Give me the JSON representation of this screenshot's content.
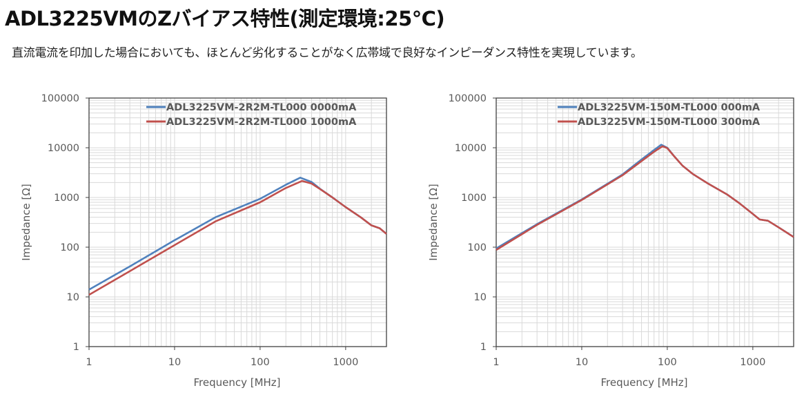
{
  "title": "ADL3225VMのZバイアス特性(測定環境:25℃)",
  "subtitle": "直流電流を印加した場合においても、ほとんど劣化することがなく広帯域で良好なインピーダンス特性を実現しています。",
  "colors": {
    "blue": "#4F81BD",
    "red": "#C0504D",
    "grid": "#D9D9D9",
    "text": "#595959"
  },
  "chart_data": [
    {
      "type": "line",
      "xlabel": "Frequency [MHz]",
      "ylabel": "Impedance [Ω]",
      "xscale": "log",
      "yscale": "log",
      "xlim": [
        1,
        3000
      ],
      "ylim": [
        1,
        100000
      ],
      "xticks": [
        "1",
        "10",
        "100",
        "1000"
      ],
      "yticks": [
        "1",
        "10",
        "100",
        "1000",
        "10000",
        "100000"
      ],
      "grid": true,
      "legend_position": "top-right",
      "series": [
        {
          "name": "ADL3225VM-2R2M-TL000 0000mA",
          "color": "#4F81BD",
          "x": [
            1,
            3,
            10,
            30,
            100,
            200,
            295,
            400,
            500,
            700,
            1000,
            1500,
            2000,
            2500,
            3000
          ],
          "y": [
            14,
            41,
            138,
            400,
            940,
            1800,
            2500,
            2050,
            1500,
            1000,
            640,
            400,
            275,
            240,
            185
          ]
        },
        {
          "name": "ADL3225VM-2R2M-TL000 1000mA",
          "color": "#C0504D",
          "x": [
            1,
            3,
            10,
            30,
            100,
            200,
            310,
            400,
            500,
            700,
            1000,
            1500,
            2000,
            2500,
            3000
          ],
          "y": [
            11,
            33,
            110,
            330,
            800,
            1550,
            2150,
            1900,
            1480,
            1000,
            640,
            400,
            275,
            240,
            185
          ]
        }
      ]
    },
    {
      "type": "line",
      "xlabel": "Frequency [MHz]",
      "ylabel": "Impedance [Ω]",
      "xscale": "log",
      "yscale": "log",
      "xlim": [
        1,
        3000
      ],
      "ylim": [
        1,
        100000
      ],
      "xticks": [
        "1",
        "10",
        "100",
        "1000"
      ],
      "yticks": [
        "1",
        "10",
        "100",
        "1000",
        "10000",
        "100000"
      ],
      "grid": true,
      "legend_position": "top-right",
      "series": [
        {
          "name": "ADL3225VM-150M-TL000 000mA",
          "color": "#4F81BD",
          "x": [
            1,
            3,
            10,
            30,
            50,
            70,
            85,
            100,
            120,
            150,
            200,
            300,
            500,
            700,
            1000,
            1200,
            1500,
            2000,
            3000
          ],
          "y": [
            94,
            290,
            910,
            2900,
            5800,
            9000,
            11500,
            10000,
            6800,
            4400,
            2950,
            1900,
            1150,
            760,
            465,
            360,
            340,
            250,
            160
          ]
        },
        {
          "name": "ADL3225VM-150M-TL000 300mA",
          "color": "#C0504D",
          "x": [
            1,
            3,
            10,
            30,
            50,
            70,
            88,
            100,
            120,
            150,
            200,
            300,
            500,
            700,
            1000,
            1200,
            1500,
            2000,
            3000
          ],
          "y": [
            88,
            280,
            890,
            2800,
            5400,
            8300,
            10700,
            9800,
            6800,
            4400,
            2950,
            1900,
            1150,
            760,
            465,
            360,
            340,
            250,
            160
          ]
        }
      ]
    }
  ]
}
